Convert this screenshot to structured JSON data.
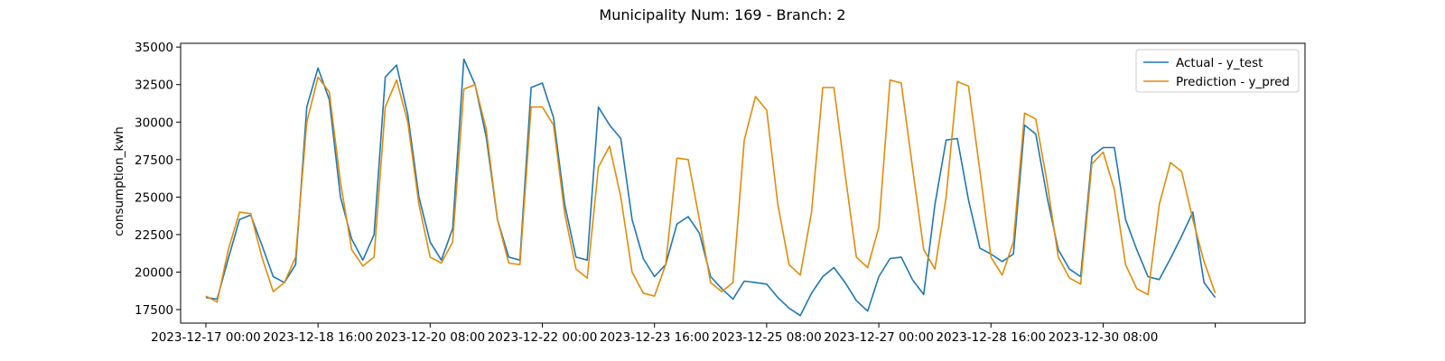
{
  "chart_data": {
    "type": "line",
    "title": "Municipality Num: 169 - Branch: 2",
    "xlabel": "",
    "ylabel": "consumption_kwh",
    "ylim": [
      16600,
      35250
    ],
    "xlim": [
      "2023-12-16 15:00",
      "2024-01-02 08:00"
    ],
    "yticks": [
      17500,
      20000,
      22500,
      25000,
      27500,
      30000,
      32500,
      35000
    ],
    "xticks": [
      "2023-12-17 00:00",
      "2023-12-18 16:00",
      "2023-12-20 08:00",
      "2023-12-22 00:00",
      "2023-12-23 16:00",
      "2023-12-25 08:00",
      "2023-12-27 00:00",
      "2023-12-28 16:00",
      "2023-12-30 08:00",
      "2024-01-01 00:00"
    ],
    "xtick_labels": [
      "2023-12-17 00:00",
      "2023-12-18 16:00",
      "2023-12-20 08:00",
      "2023-12-22 00:00",
      "2023-12-23 16:00",
      "2023-12-25 08:00",
      "2023-12-27 00:00",
      "2023-12-28 16:00",
      "2023-12-30 08:00",
      ""
    ],
    "grid": false,
    "legend_position": "top-right",
    "colors": {
      "actual": "#1f77b4",
      "prediction": "#e08c0b"
    },
    "series": [
      {
        "name": "Actual - y_test",
        "x": [
          "2023-12-17 00:00",
          "2023-12-17 04:00",
          "2023-12-17 08:00",
          "2023-12-17 12:00",
          "2023-12-17 16:00",
          "2023-12-17 20:00",
          "2023-12-18 00:00",
          "2023-12-18 04:00",
          "2023-12-18 08:00",
          "2023-12-18 12:00",
          "2023-12-18 16:00",
          "2023-12-18 20:00",
          "2023-12-19 00:00",
          "2023-12-19 04:00",
          "2023-12-19 08:00",
          "2023-12-19 12:00",
          "2023-12-19 16:00",
          "2023-12-19 20:00",
          "2023-12-20 00:00",
          "2023-12-20 04:00",
          "2023-12-20 08:00",
          "2023-12-20 12:00",
          "2023-12-20 16:00",
          "2023-12-20 20:00",
          "2023-12-21 00:00",
          "2023-12-21 04:00",
          "2023-12-21 08:00",
          "2023-12-21 12:00",
          "2023-12-21 16:00",
          "2023-12-21 20:00",
          "2023-12-22 00:00",
          "2023-12-22 04:00",
          "2023-12-22 08:00",
          "2023-12-22 12:00",
          "2023-12-22 16:00",
          "2023-12-22 20:00",
          "2023-12-23 00:00",
          "2023-12-23 04:00",
          "2023-12-23 08:00",
          "2023-12-23 12:00",
          "2023-12-23 16:00",
          "2023-12-23 20:00",
          "2023-12-24 00:00",
          "2023-12-24 04:00",
          "2023-12-24 08:00",
          "2023-12-24 12:00",
          "2023-12-24 16:00",
          "2023-12-24 20:00",
          "2023-12-25 00:00",
          "2023-12-25 04:00",
          "2023-12-25 08:00",
          "2023-12-25 12:00",
          "2023-12-25 16:00",
          "2023-12-25 20:00",
          "2023-12-26 00:00",
          "2023-12-26 04:00",
          "2023-12-26 08:00",
          "2023-12-26 12:00",
          "2023-12-26 16:00",
          "2023-12-26 20:00",
          "2023-12-27 00:00",
          "2023-12-27 04:00",
          "2023-12-27 08:00",
          "2023-12-27 12:00",
          "2023-12-27 16:00",
          "2023-12-27 20:00",
          "2023-12-28 00:00",
          "2023-12-28 04:00",
          "2023-12-28 08:00",
          "2023-12-28 12:00",
          "2023-12-28 16:00",
          "2023-12-28 20:00",
          "2023-12-29 00:00",
          "2023-12-29 04:00",
          "2023-12-29 08:00",
          "2023-12-29 12:00",
          "2023-12-29 16:00",
          "2023-12-29 20:00",
          "2023-12-30 00:00",
          "2023-12-30 04:00",
          "2023-12-30 08:00",
          "2023-12-30 12:00",
          "2023-12-30 16:00",
          "2023-12-30 20:00",
          "2023-12-31 00:00",
          "2023-12-31 04:00",
          "2023-12-31 08:00",
          "2023-12-31 12:00",
          "2023-12-31 16:00",
          "2023-12-31 20:00",
          "2024-01-01 00:00"
        ],
        "y": [
          18300,
          18200,
          20900,
          23500,
          23800,
          21800,
          19700,
          19300,
          20500,
          31000,
          33600,
          31500,
          25000,
          22200,
          20800,
          22500,
          33000,
          33800,
          30500,
          25000,
          22000,
          20800,
          22900,
          34200,
          32500,
          29000,
          23500,
          21000,
          20800,
          32300,
          32600,
          30300,
          24500,
          21000,
          20800,
          31000,
          29800,
          28900,
          23500,
          20900,
          19700,
          20500,
          23200,
          23700,
          22600,
          19700,
          18900,
          18200,
          19400,
          19300,
          19200,
          18300,
          17600,
          17100,
          18600,
          19700,
          20300,
          19300,
          18100,
          17400,
          19700,
          20900,
          21000,
          19500,
          18500,
          24500,
          28800,
          28900,
          24800,
          21600,
          21200,
          20700,
          21200,
          29800,
          29200,
          25000,
          21500,
          20200,
          19700,
          27700,
          28300,
          28300,
          23500,
          21500,
          19700,
          19500,
          20900,
          22400,
          24000,
          19300,
          18300
        ]
      },
      {
        "name": "Prediction - y_pred",
        "x": [
          "2023-12-17 00:00",
          "2023-12-17 04:00",
          "2023-12-17 08:00",
          "2023-12-17 12:00",
          "2023-12-17 16:00",
          "2023-12-17 20:00",
          "2023-12-18 00:00",
          "2023-12-18 04:00",
          "2023-12-18 08:00",
          "2023-12-18 12:00",
          "2023-12-18 16:00",
          "2023-12-18 20:00",
          "2023-12-19 00:00",
          "2023-12-19 04:00",
          "2023-12-19 08:00",
          "2023-12-19 12:00",
          "2023-12-19 16:00",
          "2023-12-19 20:00",
          "2023-12-20 00:00",
          "2023-12-20 04:00",
          "2023-12-20 08:00",
          "2023-12-20 12:00",
          "2023-12-20 16:00",
          "2023-12-20 20:00",
          "2023-12-21 00:00",
          "2023-12-21 04:00",
          "2023-12-21 08:00",
          "2023-12-21 12:00",
          "2023-12-21 16:00",
          "2023-12-21 20:00",
          "2023-12-22 00:00",
          "2023-12-22 04:00",
          "2023-12-22 08:00",
          "2023-12-22 12:00",
          "2023-12-22 16:00",
          "2023-12-22 20:00",
          "2023-12-23 00:00",
          "2023-12-23 04:00",
          "2023-12-23 08:00",
          "2023-12-23 12:00",
          "2023-12-23 16:00",
          "2023-12-23 20:00",
          "2023-12-24 00:00",
          "2023-12-24 04:00",
          "2023-12-24 08:00",
          "2023-12-24 12:00",
          "2023-12-24 16:00",
          "2023-12-24 20:00",
          "2023-12-25 00:00",
          "2023-12-25 04:00",
          "2023-12-25 08:00",
          "2023-12-25 12:00",
          "2023-12-25 16:00",
          "2023-12-25 20:00",
          "2023-12-26 00:00",
          "2023-12-26 04:00",
          "2023-12-26 08:00",
          "2023-12-26 12:00",
          "2023-12-26 16:00",
          "2023-12-26 20:00",
          "2023-12-27 00:00",
          "2023-12-27 04:00",
          "2023-12-27 08:00",
          "2023-12-27 12:00",
          "2023-12-27 16:00",
          "2023-12-27 20:00",
          "2023-12-28 00:00",
          "2023-12-28 04:00",
          "2023-12-28 08:00",
          "2023-12-28 12:00",
          "2023-12-28 16:00",
          "2023-12-28 20:00",
          "2023-12-29 00:00",
          "2023-12-29 04:00",
          "2023-12-29 08:00",
          "2023-12-29 12:00",
          "2023-12-29 16:00",
          "2023-12-29 20:00",
          "2023-12-30 00:00",
          "2023-12-30 04:00",
          "2023-12-30 08:00",
          "2023-12-30 12:00",
          "2023-12-30 16:00",
          "2023-12-30 20:00",
          "2023-12-31 00:00",
          "2023-12-31 04:00",
          "2023-12-31 08:00",
          "2023-12-31 12:00",
          "2023-12-31 16:00",
          "2023-12-31 20:00",
          "2024-01-01 00:00"
        ],
        "y": [
          18400,
          18000,
          21500,
          24000,
          23900,
          21000,
          18700,
          19300,
          21000,
          30000,
          33000,
          32000,
          26000,
          21500,
          20400,
          21000,
          31000,
          32800,
          30000,
          24500,
          21000,
          20600,
          22000,
          32200,
          32500,
          29500,
          23500,
          20600,
          20500,
          31000,
          31000,
          29800,
          23900,
          20200,
          19600,
          27000,
          28400,
          25000,
          20000,
          18600,
          18400,
          20500,
          27600,
          27500,
          23500,
          19300,
          18700,
          19300,
          28800,
          31700,
          30800,
          24500,
          20500,
          19800,
          24000,
          32300,
          32300,
          26500,
          21000,
          20300,
          23000,
          32800,
          32600,
          27000,
          21500,
          20200,
          25000,
          32700,
          32400,
          26800,
          21000,
          19800,
          22000,
          30600,
          30200,
          26000,
          21000,
          19600,
          19200,
          27200,
          28000,
          25500,
          20500,
          18900,
          18500,
          24500,
          27300,
          26700,
          23500,
          20700,
          18600
        ]
      }
    ]
  }
}
